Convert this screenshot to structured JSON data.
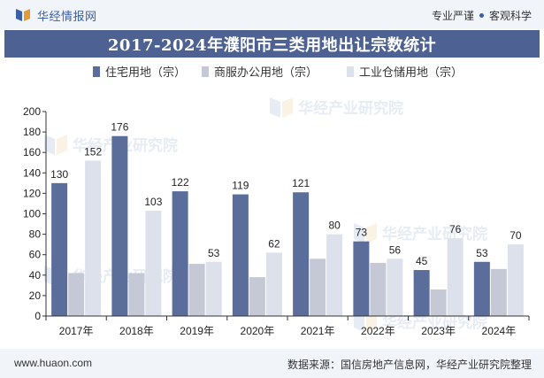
{
  "header": {
    "brand": "华经情报网",
    "tagline_left": "专业严谨",
    "tagline_right": "客观科学"
  },
  "footer": {
    "site": "www.huaon.com",
    "source": "数据来源：国信房地产信息网，华经产业研究院整理"
  },
  "watermark": "华经产业研究院",
  "colors": {
    "residential": "#5b6e9b",
    "commercial": "#c5c9d5",
    "industrial": "#dde1ec",
    "title_bg": "#4d6192"
  },
  "chart_data": {
    "type": "bar",
    "title": "2017-2024年濮阳市三类用地出让宗数统计",
    "categories": [
      "2017年",
      "2018年",
      "2019年",
      "2020年",
      "2021年",
      "2022年",
      "2023年",
      "2024年"
    ],
    "series": [
      {
        "name": "住宅用地（宗）",
        "values": [
          130,
          176,
          122,
          119,
          121,
          73,
          45,
          53
        ],
        "labeled": true
      },
      {
        "name": "商服办公用地（宗）",
        "values": [
          42,
          42,
          51,
          38,
          56,
          52,
          26,
          46
        ],
        "labeled": false
      },
      {
        "name": "工业仓储用地（宗）",
        "values": [
          152,
          103,
          53,
          62,
          80,
          56,
          76,
          70
        ],
        "labeled": true
      }
    ],
    "yticks": [
      0,
      20,
      40,
      60,
      80,
      100,
      120,
      140,
      160,
      180,
      200
    ],
    "ylim": [
      0,
      200
    ],
    "legend_position": "top",
    "grid": false
  }
}
